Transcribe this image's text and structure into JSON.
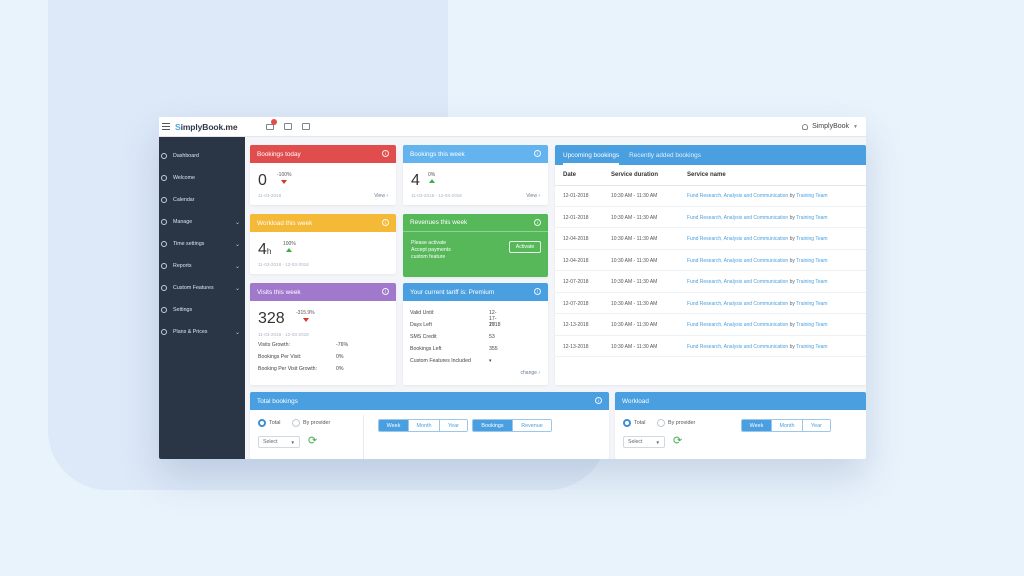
{
  "app": {
    "logo_s": "S",
    "logo_main": "implyBook",
    "logo_suffix": ".me",
    "user_name": "SimplyBook"
  },
  "sidebar": {
    "items": [
      {
        "label": "Dashboard",
        "icon": "dashboard-icon",
        "expandable": false
      },
      {
        "label": "Welcome",
        "icon": "pin-icon",
        "expandable": false
      },
      {
        "label": "Calendar",
        "icon": "calendar-icon",
        "expandable": false
      },
      {
        "label": "Manage",
        "icon": "edit-icon",
        "expandable": true
      },
      {
        "label": "Time settings",
        "icon": "clock-icon",
        "expandable": true
      },
      {
        "label": "Reports",
        "icon": "chart-icon",
        "expandable": true
      },
      {
        "label": "Custom Features",
        "icon": "puzzle-icon",
        "expandable": true
      },
      {
        "label": "Settings",
        "icon": "gear-icon",
        "expandable": false
      },
      {
        "label": "Plans & Prices",
        "icon": "price-icon",
        "expandable": true
      }
    ]
  },
  "cards": {
    "bookings_today": {
      "title": "Bookings today",
      "value": "0",
      "pct": "-100%",
      "date": "11-03-2018",
      "link": "View",
      "color": "#e14d4d"
    },
    "bookings_week": {
      "title": "Bookings this week",
      "value": "4",
      "pct": "0%",
      "date": "11-03-2018 - 12-03-2018",
      "link": "View",
      "color": "#63b3ee"
    },
    "workload_week": {
      "title": "Workload this week",
      "value": "4",
      "unit": "h",
      "pct": "100%",
      "date": "11-03-2018 - 12-03-2018",
      "color": "#f4b936"
    },
    "revenues_week": {
      "title": "Revenues this week",
      "line1": "Please activate",
      "line2": "Accept payments",
      "line3": "custom feature",
      "button": "Activate",
      "color": "#57b85a"
    },
    "visits_week": {
      "title": "Visits this week",
      "value": "328",
      "pct": "-315.9%",
      "date": "11-03-2018 - 12-03-2018",
      "color": "#a078cc",
      "rows": [
        {
          "label": "Visits Growth:",
          "value": "-76%"
        },
        {
          "label": "Bookings Per Visit:",
          "value": "0%"
        },
        {
          "label": "Booking Per Visit Growth:",
          "value": "0%"
        }
      ]
    },
    "tariff": {
      "title": "Your current tariff is: Premium",
      "color": "#4a9fe0",
      "rows": [
        {
          "label": "Valid Until:",
          "value": "12-17-2018"
        },
        {
          "label": "Days Left",
          "value": "17"
        },
        {
          "label": "SMS Credit",
          "value": "53"
        },
        {
          "label": "Bookings Left",
          "value": "355"
        },
        {
          "label": "Custom Features Included",
          "value": "▾"
        }
      ],
      "link": "change"
    }
  },
  "bookings_panel": {
    "tab_active": "Upcoming bookings",
    "tab_inactive": "Recently added bookings",
    "columns": [
      "Date",
      "Service duration",
      "Service name"
    ],
    "rows": [
      {
        "date": "12-01-2018",
        "duration": "10:30 AM - 11:30 AM",
        "service": "Fund Research, Analysis and Communication",
        "by": "by",
        "team": "Training Team"
      },
      {
        "date": "12-01-2018",
        "duration": "10:30 AM - 11:30 AM",
        "service": "Fund Research, Analysis and Communication",
        "by": "by",
        "team": "Training Team"
      },
      {
        "date": "12-04-2018",
        "duration": "10:30 AM - 11:30 AM",
        "service": "Fund Research, Analysis and Communication",
        "by": "by",
        "team": "Training Team"
      },
      {
        "date": "12-04-2018",
        "duration": "10:30 AM - 11:30 AM",
        "service": "Fund Research, Analysis and Communication",
        "by": "by",
        "team": "Training Team"
      },
      {
        "date": "12-07-2018",
        "duration": "10:30 AM - 11:30 AM",
        "service": "Fund Research, Analysis and Communication",
        "by": "by",
        "team": "Training Team"
      },
      {
        "date": "12-07-2018",
        "duration": "10:30 AM - 11:30 AM",
        "service": "Fund Research, Analysis and Communication",
        "by": "by",
        "team": "Training Team"
      },
      {
        "date": "12-13-2018",
        "duration": "10:30 AM - 11:30 AM",
        "service": "Fund Research, Analysis and Communication",
        "by": "by",
        "team": "Training Team"
      },
      {
        "date": "12-13-2018",
        "duration": "10:30 AM - 11:30 AM",
        "service": "Fund Research, Analysis and Communication",
        "by": "by",
        "team": "Training Team"
      }
    ]
  },
  "total_bookings": {
    "title": "Total bookings",
    "radio_total": "Total",
    "radio_provider": "By provider",
    "select": "Select",
    "periods": [
      "Week",
      "Month",
      "Year"
    ],
    "modes": [
      "Bookings",
      "Revenue"
    ]
  },
  "workload": {
    "title": "Workload",
    "radio_total": "Total",
    "radio_provider": "By provider",
    "select": "Select",
    "periods": [
      "Week",
      "Month",
      "Year"
    ]
  }
}
